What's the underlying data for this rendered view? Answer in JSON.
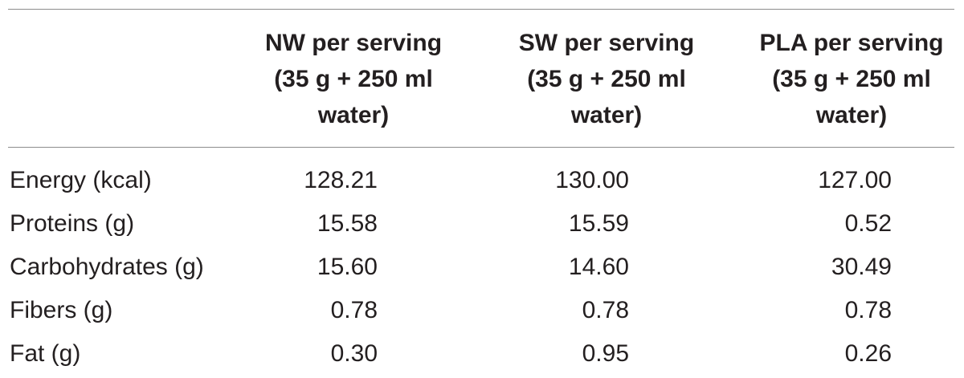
{
  "table": {
    "columns": [
      {
        "lines": [
          "NW per serving",
          "(35 g + 250 ml",
          "water)"
        ]
      },
      {
        "lines": [
          "SW per serving",
          "(35 g + 250 ml",
          "water)"
        ]
      },
      {
        "lines": [
          "PLA per serving",
          "(35 g + 250 ml",
          "water)"
        ]
      }
    ],
    "rows": [
      {
        "label": "Energy (kcal)",
        "nw": "128.21",
        "sw": "130.00",
        "pla": "127.00"
      },
      {
        "label": "Proteins (g)",
        "nw": "15.58",
        "sw": "15.59",
        "pla": "0.52"
      },
      {
        "label": "Carbohydrates (g)",
        "nw": "15.60",
        "sw": "14.60",
        "pla": "30.49"
      },
      {
        "label": "Fibers (g)",
        "nw": "0.78",
        "sw": "0.78",
        "pla": "0.78"
      },
      {
        "label": "Fat (g)",
        "nw": "0.30",
        "sw": "0.95",
        "pla": "0.26"
      }
    ]
  }
}
